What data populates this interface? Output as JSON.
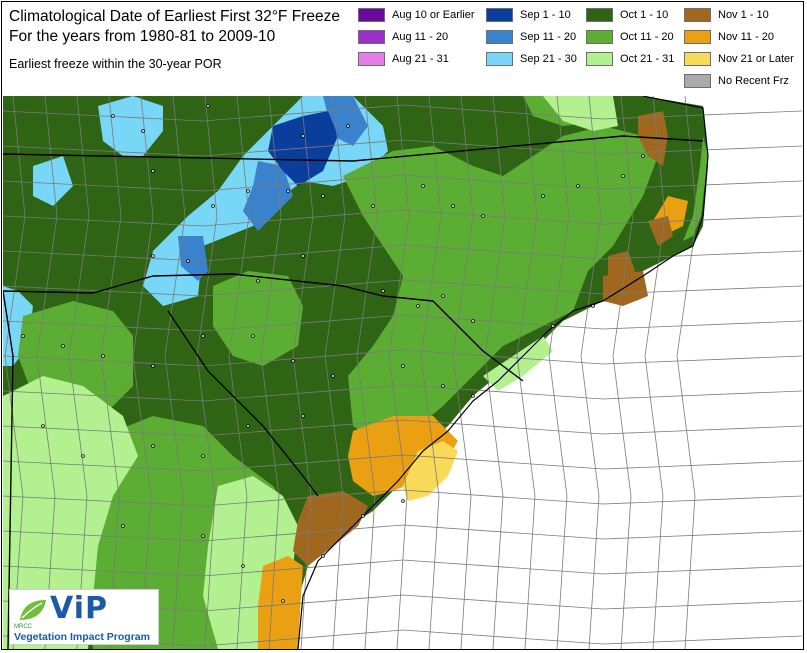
{
  "title": {
    "line1": "Climatological Date of Earliest First 32°F Freeze",
    "line2": "For the years from 1980-81 to 2009-10",
    "subtitle": "Earliest freeze within the 30-year POR"
  },
  "legend": [
    {
      "label": "Aug 10 or Earlier",
      "color": "#6a0a9a"
    },
    {
      "label": "Aug 11 - 20",
      "color": "#9a30c8"
    },
    {
      "label": "Aug 21 - 31",
      "color": "#e67ee8"
    },
    {
      "label": "Sep 1 - 10",
      "color": "#0a3d9c"
    },
    {
      "label": "Sep 11 - 20",
      "color": "#3a82cc"
    },
    {
      "label": "Sep 21 - 30",
      "color": "#78d6f6"
    },
    {
      "label": "Oct 1 - 10",
      "color": "#2e6414"
    },
    {
      "label": "Oct 11 - 20",
      "color": "#5cad34"
    },
    {
      "label": "Oct 21 - 31",
      "color": "#b2f090"
    },
    {
      "label": "Nov 1 - 10",
      "color": "#a0681e"
    },
    {
      "label": "Nov 11 - 20",
      "color": "#eaa012"
    },
    {
      "label": "Nov 21 or Later",
      "color": "#f8da58"
    },
    {
      "label": "No Recent Frz",
      "color": "#aaaaaa"
    }
  ],
  "colors": {
    "county_line": "#7a7a7a",
    "state_line": "#000000",
    "ocean": "#ffffff",
    "station_dot": "#000000"
  },
  "logo": {
    "name": "ViP",
    "org": "MRCC",
    "program": "Vegetation Impact Program"
  }
}
